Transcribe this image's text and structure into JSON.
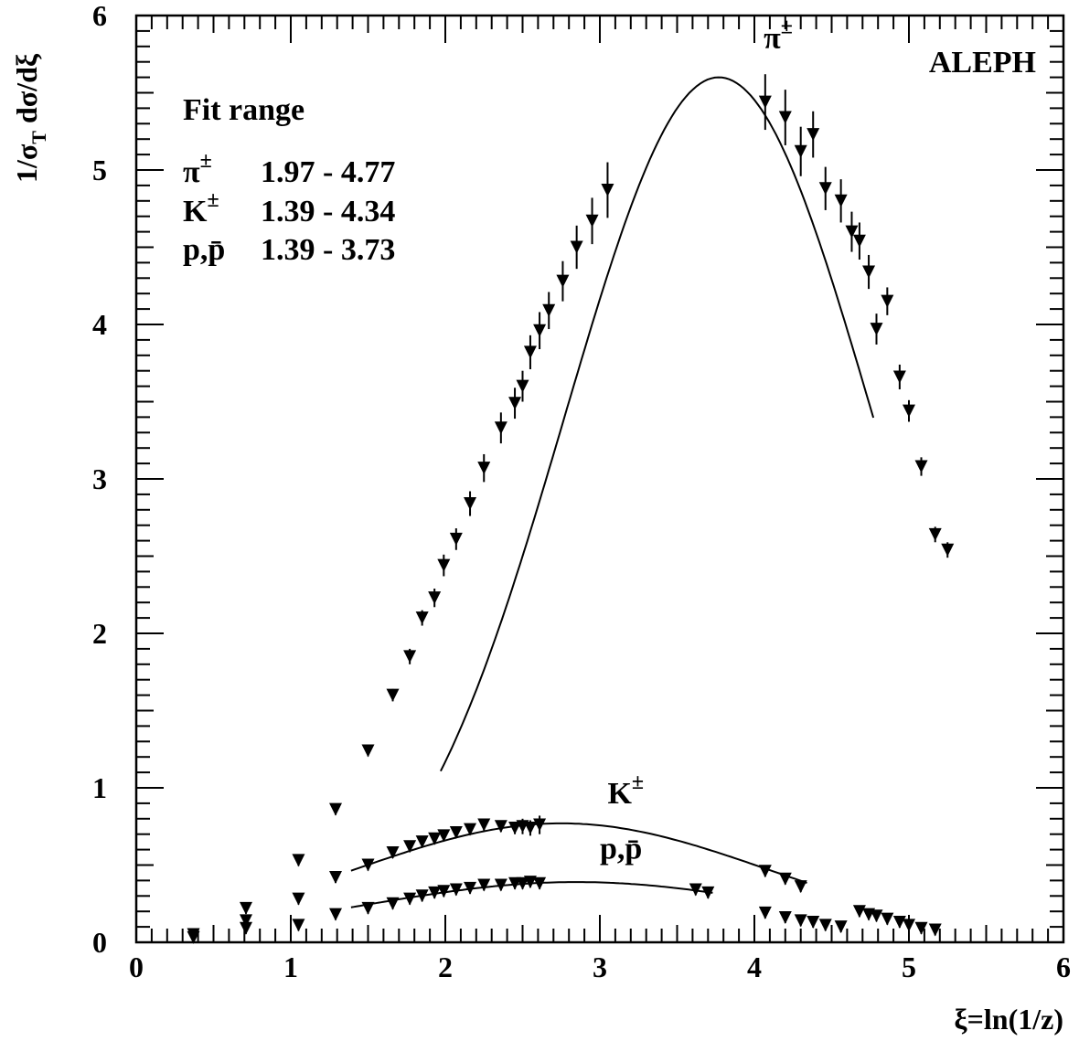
{
  "chart_data": {
    "type": "scatter",
    "experiment_label": "ALEPH",
    "xlabel": "ξ=ln(1/z)",
    "ylabel_main": "1/σ",
    "ylabel_sub": "T",
    "ylabel_rest": " dσ/dξ",
    "xlim": [
      0,
      6
    ],
    "ylim": [
      0,
      6
    ],
    "xticks": [
      "0",
      "1",
      "2",
      "3",
      "4",
      "5",
      "6"
    ],
    "yticks": [
      "0",
      "1",
      "2",
      "3",
      "4",
      "5",
      "6"
    ],
    "legend": {
      "title": "Fit range",
      "rows": [
        {
          "particle_base": "π",
          "particle_sup": "±",
          "range": "1.97 - 4.77"
        },
        {
          "particle_base": "K",
          "particle_sup": "±",
          "range": "1.39 - 4.34"
        },
        {
          "particle_base": "p,p̄",
          "particle_sup": "",
          "range": "1.39 - 3.73"
        }
      ]
    },
    "series": [
      {
        "name": "π±",
        "label_base": "π",
        "label_sup": "±",
        "label_at": [
          4.06,
          5.79
        ],
        "points": [
          [
            0.37,
            0.05,
            0.02
          ],
          [
            0.71,
            0.14,
            0.02
          ],
          [
            1.05,
            0.53,
            0.02
          ],
          [
            1.29,
            0.86,
            0.02
          ],
          [
            1.5,
            1.24,
            0.03
          ],
          [
            1.66,
            1.6,
            0.04
          ],
          [
            1.77,
            1.85,
            0.05
          ],
          [
            1.85,
            2.1,
            0.05
          ],
          [
            1.93,
            2.23,
            0.06
          ],
          [
            1.99,
            2.44,
            0.07
          ],
          [
            2.07,
            2.61,
            0.07
          ],
          [
            2.16,
            2.84,
            0.08
          ],
          [
            2.25,
            3.07,
            0.09
          ],
          [
            2.36,
            3.33,
            0.1
          ],
          [
            2.45,
            3.49,
            0.1
          ],
          [
            2.5,
            3.6,
            0.1
          ],
          [
            2.55,
            3.82,
            0.11
          ],
          [
            2.61,
            3.96,
            0.12
          ],
          [
            2.67,
            4.09,
            0.12
          ],
          [
            2.76,
            4.28,
            0.13
          ],
          [
            2.85,
            4.5,
            0.14
          ],
          [
            2.95,
            4.67,
            0.15
          ],
          [
            3.05,
            4.87,
            0.18
          ],
          [
            4.07,
            5.44,
            0.18
          ],
          [
            4.2,
            5.34,
            0.18
          ],
          [
            4.3,
            5.12,
            0.16
          ],
          [
            4.38,
            5.23,
            0.15
          ],
          [
            4.46,
            4.88,
            0.14
          ],
          [
            4.56,
            4.8,
            0.14
          ],
          [
            4.63,
            4.6,
            0.13
          ],
          [
            4.68,
            4.54,
            0.12
          ],
          [
            4.74,
            4.34,
            0.11
          ],
          [
            4.79,
            3.97,
            0.1
          ],
          [
            4.86,
            4.15,
            0.09
          ],
          [
            4.94,
            3.66,
            0.08
          ],
          [
            5.0,
            3.44,
            0.07
          ],
          [
            5.08,
            3.08,
            0.06
          ],
          [
            5.17,
            2.64,
            0.05
          ],
          [
            5.25,
            2.54,
            0.05
          ]
        ],
        "fit": {
          "x_start": 1.97,
          "x_end": 4.77,
          "peak_x": 3.77,
          "peak_y": 5.6
        }
      },
      {
        "name": "K±",
        "label_base": "K",
        "label_sup": "±",
        "label_at": [
          3.05,
          0.9
        ],
        "points": [
          [
            0.71,
            0.22,
            0.01
          ],
          [
            1.05,
            0.28,
            0.01
          ],
          [
            1.29,
            0.42,
            0.01
          ],
          [
            1.5,
            0.5,
            0.02
          ],
          [
            1.66,
            0.58,
            0.02
          ],
          [
            1.77,
            0.62,
            0.02
          ],
          [
            1.85,
            0.65,
            0.02
          ],
          [
            1.93,
            0.67,
            0.02
          ],
          [
            1.99,
            0.69,
            0.02
          ],
          [
            2.07,
            0.71,
            0.02
          ],
          [
            2.16,
            0.73,
            0.02
          ],
          [
            2.25,
            0.76,
            0.02
          ],
          [
            2.36,
            0.75,
            0.03
          ],
          [
            2.45,
            0.74,
            0.04
          ],
          [
            2.5,
            0.75,
            0.05
          ],
          [
            2.55,
            0.74,
            0.05
          ],
          [
            2.61,
            0.76,
            0.06
          ],
          [
            4.07,
            0.46,
            0.02
          ],
          [
            4.2,
            0.41,
            0.02
          ],
          [
            4.3,
            0.36,
            0.02
          ],
          [
            4.07,
            0.19,
            0.01
          ],
          [
            4.2,
            0.16,
            0.01
          ],
          [
            4.3,
            0.14,
            0.01
          ],
          [
            4.38,
            0.13,
            0.01
          ],
          [
            4.46,
            0.11,
            0.01
          ],
          [
            4.56,
            0.1,
            0.01
          ],
          [
            4.68,
            0.2,
            0.01
          ],
          [
            4.74,
            0.18,
            0.01
          ],
          [
            4.79,
            0.17,
            0.01
          ],
          [
            4.86,
            0.15,
            0.01
          ],
          [
            4.94,
            0.13,
            0.01
          ],
          [
            5.0,
            0.11,
            0.01
          ],
          [
            5.08,
            0.09,
            0.01
          ],
          [
            5.17,
            0.08,
            0.01
          ]
        ],
        "fit": {
          "x_start": 1.39,
          "x_end": 4.34,
          "peak_x": 2.75,
          "peak_y": 0.77
        }
      },
      {
        "name": "p,p̄",
        "label_base": "p,p̄",
        "label_sup": "",
        "label_at": [
          3.0,
          0.54
        ],
        "points": [
          [
            0.37,
            0.03,
            0.01
          ],
          [
            0.71,
            0.09,
            0.01
          ],
          [
            1.05,
            0.11,
            0.01
          ],
          [
            1.29,
            0.18,
            0.01
          ],
          [
            1.5,
            0.22,
            0.01
          ],
          [
            1.66,
            0.25,
            0.01
          ],
          [
            1.77,
            0.28,
            0.01
          ],
          [
            1.85,
            0.3,
            0.01
          ],
          [
            1.93,
            0.32,
            0.01
          ],
          [
            1.99,
            0.33,
            0.01
          ],
          [
            2.07,
            0.34,
            0.01
          ],
          [
            2.16,
            0.35,
            0.01
          ],
          [
            2.25,
            0.37,
            0.01
          ],
          [
            2.36,
            0.37,
            0.01
          ],
          [
            2.45,
            0.38,
            0.02
          ],
          [
            2.5,
            0.38,
            0.02
          ],
          [
            2.55,
            0.39,
            0.02
          ],
          [
            2.61,
            0.38,
            0.02
          ],
          [
            3.62,
            0.34,
            0.01
          ],
          [
            3.7,
            0.32,
            0.01
          ]
        ],
        "fit": {
          "x_start": 1.39,
          "x_end": 3.73,
          "peak_x": 2.85,
          "peak_y": 0.39
        }
      }
    ]
  }
}
